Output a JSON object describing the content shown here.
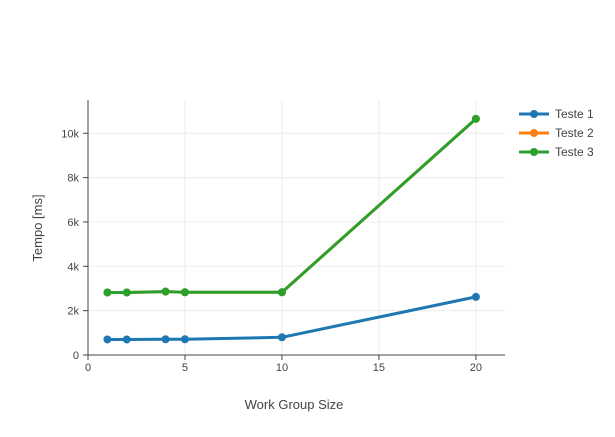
{
  "chart_data": {
    "type": "line",
    "title": "",
    "xlabel": "Work Group Size",
    "ylabel": "Tempo [ms]",
    "xlim": [
      0,
      21.5
    ],
    "ylim": [
      0,
      11500
    ],
    "x_ticks": [
      0,
      5,
      10,
      15,
      20
    ],
    "x_tick_labels": [
      "0",
      "5",
      "10",
      "15",
      "20"
    ],
    "y_ticks": [
      0,
      2000,
      4000,
      6000,
      8000,
      10000
    ],
    "y_tick_labels": [
      "0",
      "2k",
      "4k",
      "6k",
      "8k",
      "10k"
    ],
    "grid": true,
    "legend_position": "right",
    "series": [
      {
        "name": "Teste 1",
        "color": "#1f77b4",
        "x": [
          1,
          2,
          4,
          5,
          10,
          20
        ],
        "y": [
          700,
          700,
          710,
          710,
          800,
          2620
        ]
      },
      {
        "name": "Teste 2",
        "color": "#ff7f0e",
        "x": [
          1,
          2,
          4,
          5,
          10,
          20
        ],
        "y": [
          2820,
          2820,
          2860,
          2830,
          2830,
          10650
        ]
      },
      {
        "name": "Teste 3",
        "color": "#2ca02c",
        "x": [
          1,
          2,
          4,
          5,
          10,
          20
        ],
        "y": [
          2820,
          2820,
          2860,
          2830,
          2830,
          10650
        ]
      }
    ]
  }
}
